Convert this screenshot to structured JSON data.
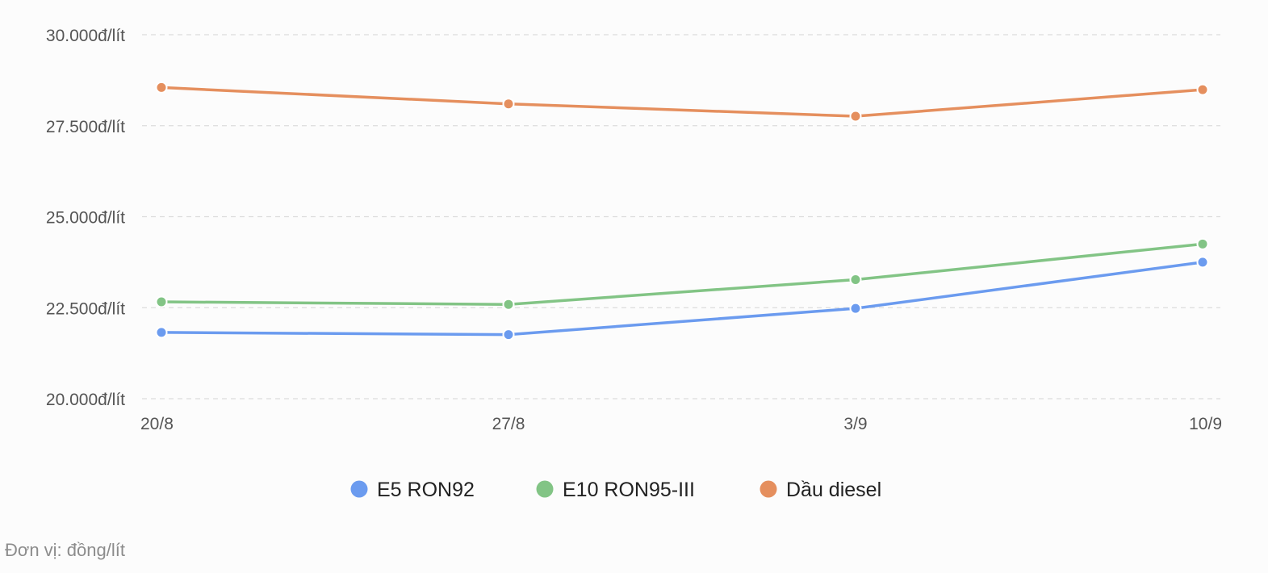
{
  "chart_data": {
    "type": "line",
    "categories": [
      "20/8",
      "27/8",
      "3/9",
      "10/9"
    ],
    "y_ticks": [
      {
        "value": 30000,
        "label": "30.000đ/lít"
      },
      {
        "value": 27500,
        "label": "27.500đ/lít"
      },
      {
        "value": 25000,
        "label": "25.000đ/lít"
      },
      {
        "value": 22500,
        "label": "22.500đ/lít"
      },
      {
        "value": 20000,
        "label": "20.000đ/lít"
      }
    ],
    "ylim": [
      20000,
      30000
    ],
    "grid": true,
    "legend_position": "bottom-center",
    "series": [
      {
        "name": "E5 RON92",
        "color": "#6b9bef",
        "values": [
          21820,
          21760,
          22480,
          23750
        ]
      },
      {
        "name": "E10 RON95-III",
        "color": "#82c485",
        "values": [
          22660,
          22590,
          23270,
          24250
        ]
      },
      {
        "name": "Dầu diesel",
        "color": "#e58f5e",
        "values": [
          28550,
          28100,
          27760,
          28490
        ]
      }
    ],
    "unit_note": "Đơn vị: đồng/lít"
  }
}
